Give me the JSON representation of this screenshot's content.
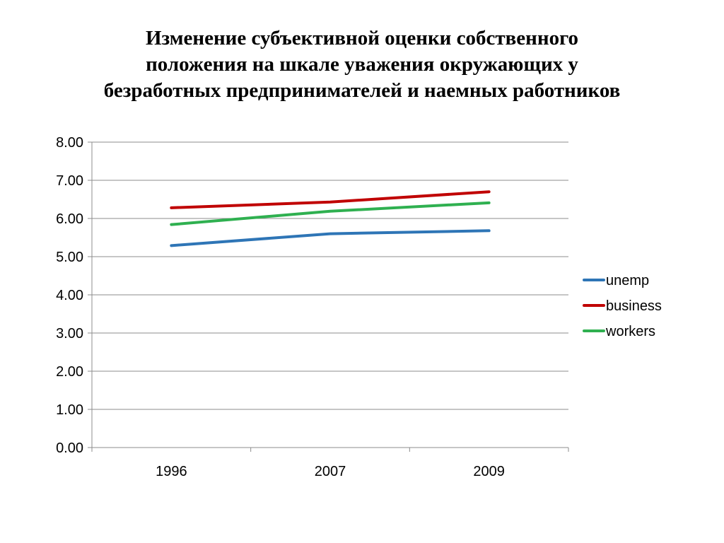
{
  "chart_data": {
    "type": "line",
    "title_lines": [
      "Изменение субъективной оценки собственного",
      "положения на шкале уважения окружающих у",
      "безработных предпринимателей и наемных работников"
    ],
    "categories": [
      "1996",
      "2007",
      "2009"
    ],
    "ylim": [
      0,
      8
    ],
    "ytick_step": 1,
    "ytick_labels": [
      "0.00",
      "1.00",
      "2.00",
      "3.00",
      "4.00",
      "5.00",
      "6.00",
      "7.00",
      "8.00"
    ],
    "grid": true,
    "legend_position": "right",
    "series": [
      {
        "name": "unemp",
        "color": "#2e75b6",
        "values": [
          5.29,
          5.6,
          5.68
        ]
      },
      {
        "name": "business",
        "color": "#c00000",
        "values": [
          6.28,
          6.43,
          6.7
        ]
      },
      {
        "name": "workers",
        "color": "#2fb050",
        "values": [
          5.84,
          6.19,
          6.41
        ]
      }
    ]
  }
}
